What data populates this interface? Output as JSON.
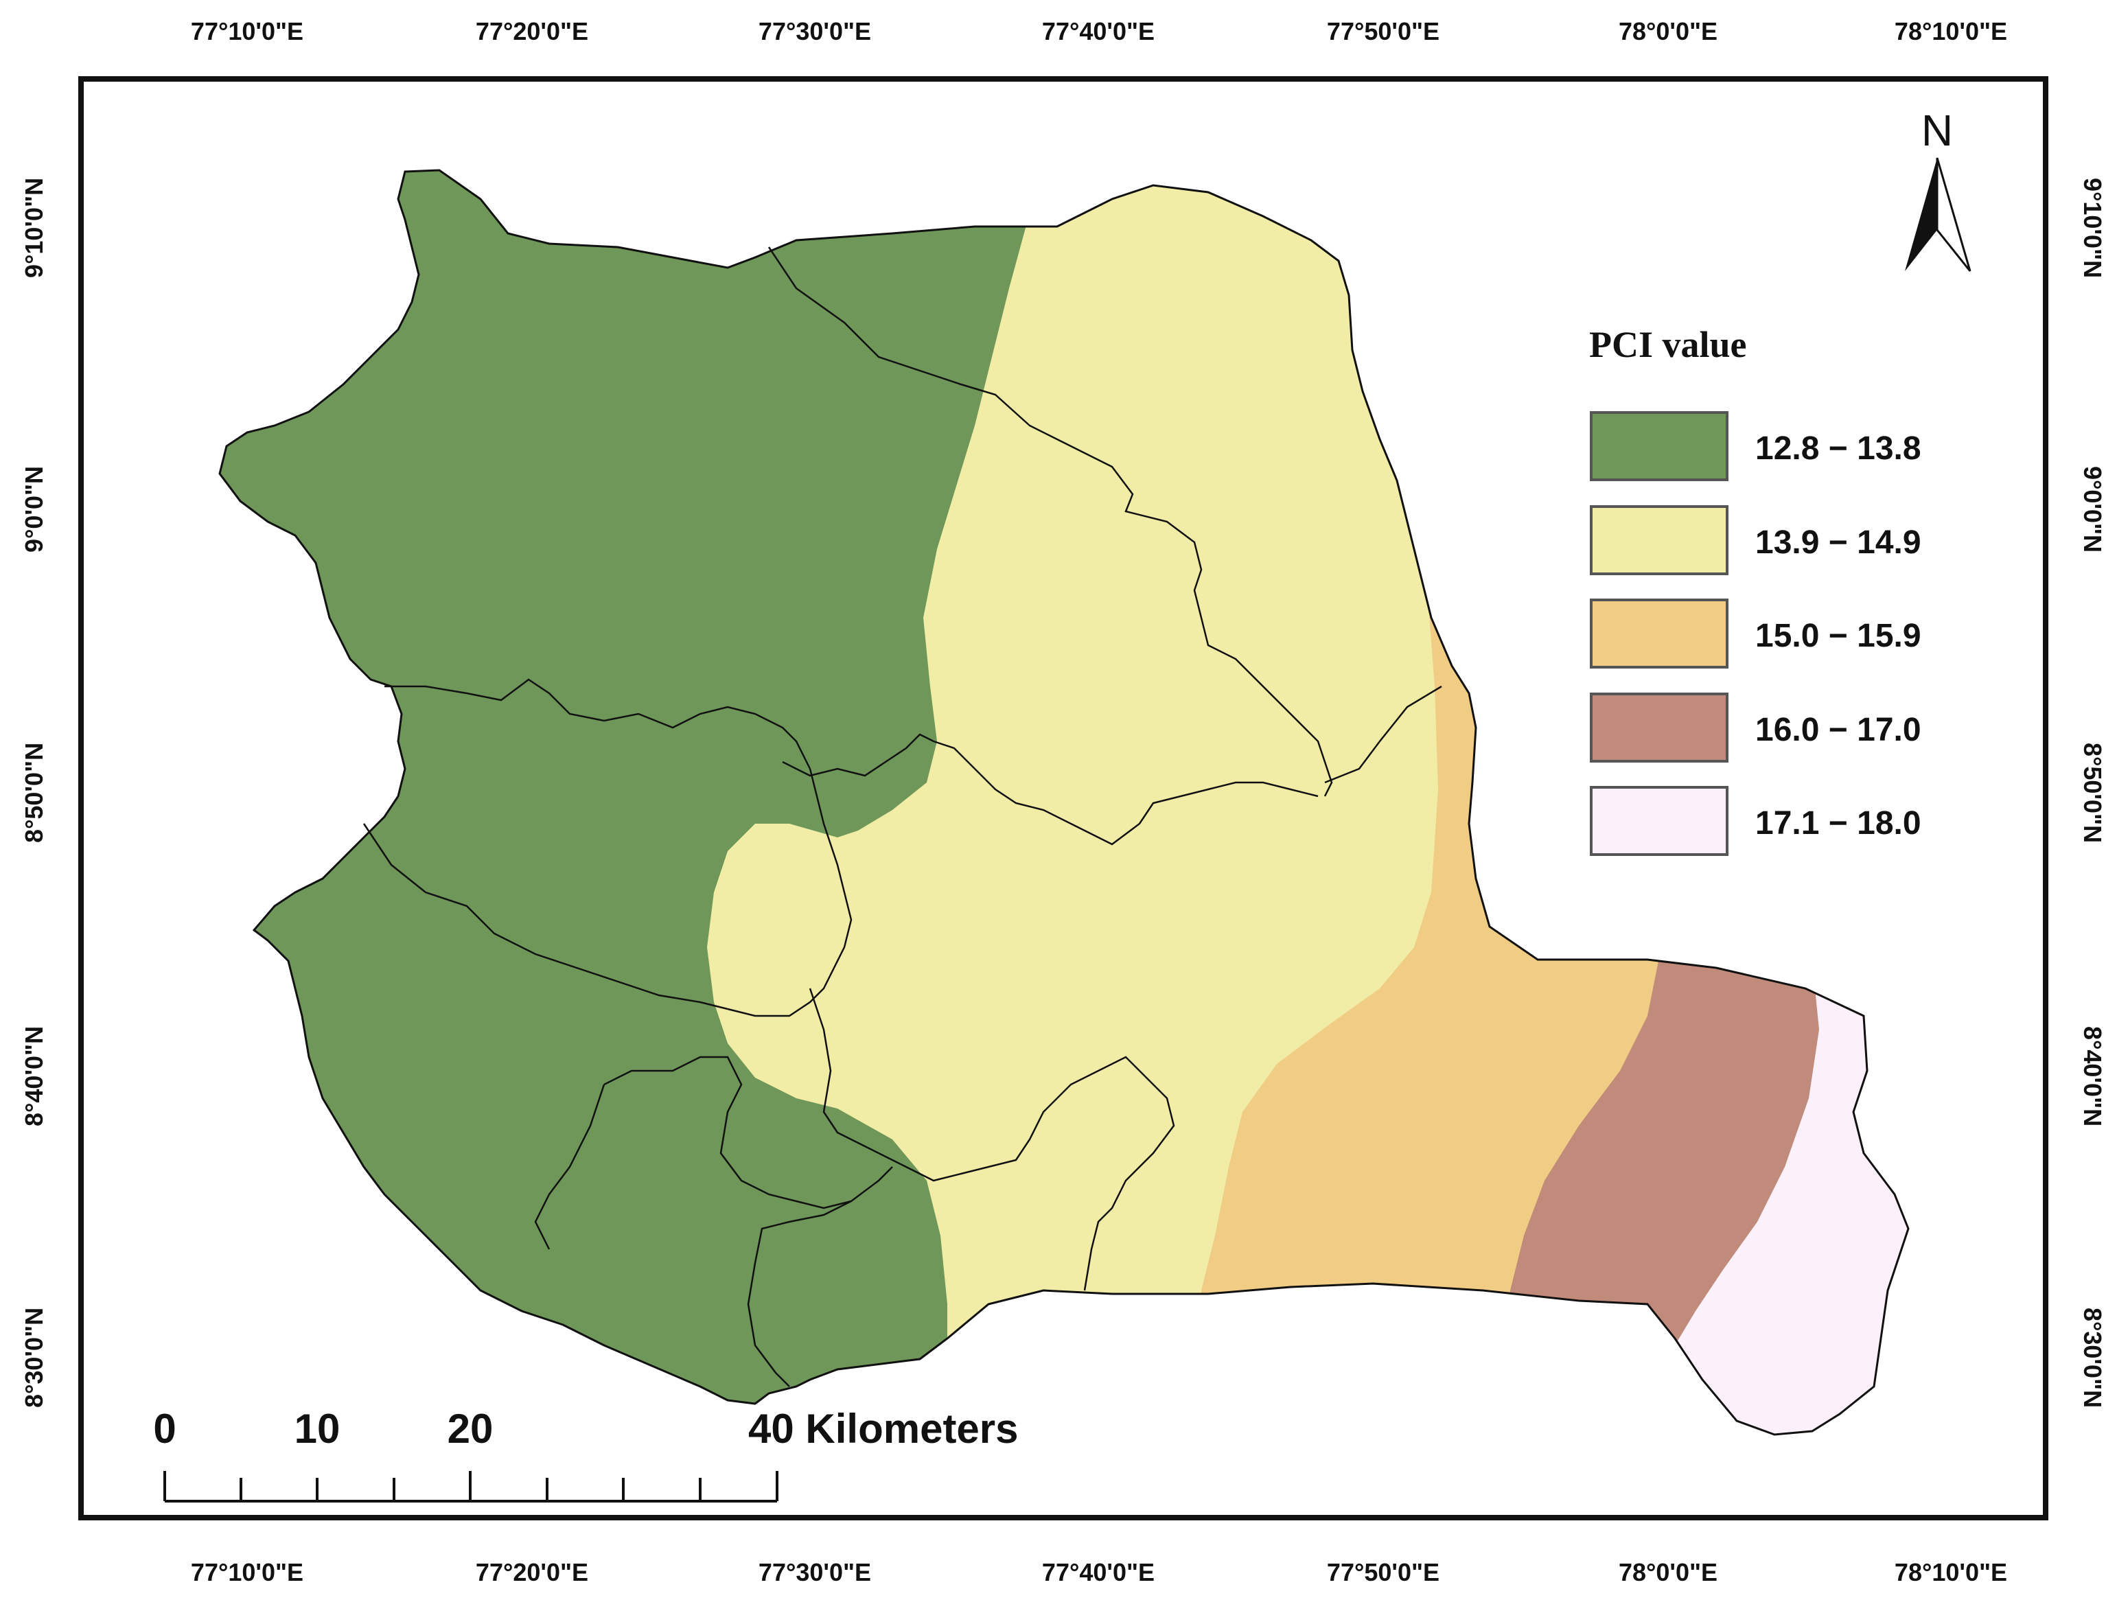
{
  "map": {
    "top_lon_labels": [
      "77°10'0\"E",
      "77°20'0\"E",
      "77°30'0\"E",
      "77°40'0\"E",
      "77°50'0\"E",
      "78°0'0\"E",
      "78°10'0\"E"
    ],
    "bottom_lon_labels": [
      "77°10'0\"E",
      "77°20'0\"E",
      "77°30'0\"E",
      "77°40'0\"E",
      "77°50'0\"E",
      "78°0'0\"E",
      "78°10'0\"E"
    ],
    "left_lat_labels": [
      "9°10'0\"N",
      "9°0'0\"N",
      "8°50'0\"N",
      "8°40'0\"N",
      "8°30'0\"N"
    ],
    "right_lat_labels": [
      "9°10'0\"N",
      "9°0'0\"N",
      "8°50'0\"N",
      "8°40'0\"N",
      "8°30'0\"N"
    ],
    "north_label": "N",
    "north_arrow_icon": "north-arrow-icon"
  },
  "legend": {
    "title": "PCI value",
    "classes": [
      {
        "label": "12.8 − 13.8",
        "color": "#6f9759"
      },
      {
        "label": "13.9 − 14.9",
        "color": "#f1eda6"
      },
      {
        "label": "15.0 − 15.9",
        "color": "#f0cc85"
      },
      {
        "label": "16.0 − 17.0",
        "color": "#c08b7a"
      },
      {
        "label": "17.1 − 18.0",
        "color": "#fcf1fb"
      }
    ]
  },
  "scalebar": {
    "labels": [
      "0",
      "10",
      "20",
      "40 Kilometers"
    ]
  }
}
